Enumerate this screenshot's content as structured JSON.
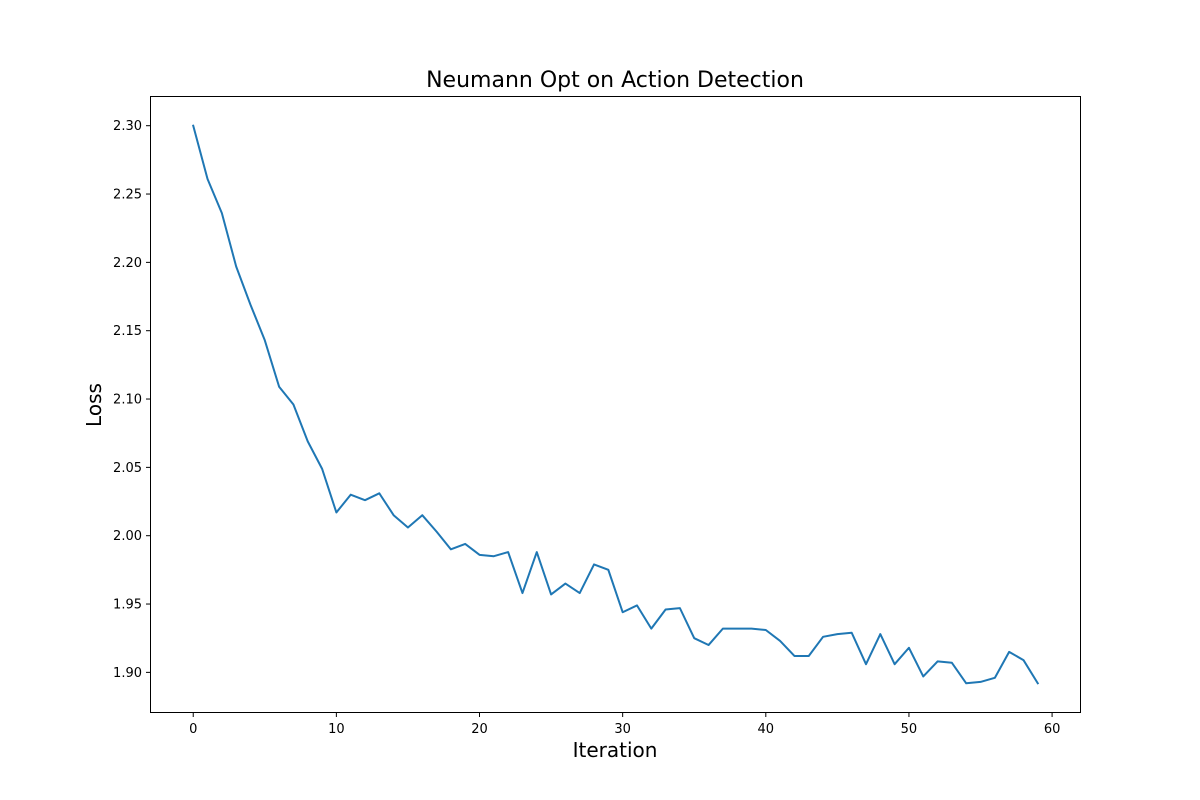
{
  "chart_data": {
    "type": "line",
    "title": "Neumann Opt on Action Detection",
    "xlabel": "Iteration",
    "ylabel": "Loss",
    "xlim": [
      -2.95,
      61.95
    ],
    "ylim": [
      1.871,
      2.321
    ],
    "xticks": [
      0,
      10,
      20,
      30,
      40,
      50,
      60
    ],
    "xtick_labels": [
      "0",
      "10",
      "20",
      "30",
      "40",
      "50",
      "60"
    ],
    "yticks": [
      1.9,
      1.95,
      2.0,
      2.05,
      2.1,
      2.15,
      2.2,
      2.25,
      2.3
    ],
    "ytick_labels": [
      "1.90",
      "1.95",
      "2.00",
      "2.05",
      "2.10",
      "2.15",
      "2.20",
      "2.25",
      "2.30"
    ],
    "grid": false,
    "legend": "none",
    "series": [
      {
        "color": "#1f77b4",
        "x": [
          0,
          1,
          2,
          3,
          4,
          5,
          6,
          7,
          8,
          9,
          10,
          11,
          12,
          13,
          14,
          15,
          16,
          17,
          18,
          19,
          20,
          21,
          22,
          23,
          24,
          25,
          26,
          27,
          28,
          29,
          30,
          31,
          32,
          33,
          34,
          35,
          36,
          37,
          38,
          39,
          40,
          41,
          42,
          43,
          44,
          45,
          46,
          47,
          48,
          49,
          50,
          51,
          52,
          53,
          54,
          55,
          56,
          57,
          58,
          59
        ],
        "y": [
          2.3,
          2.261,
          2.236,
          2.197,
          2.169,
          2.143,
          2.109,
          2.096,
          2.069,
          2.049,
          2.017,
          2.03,
          2.026,
          2.031,
          2.015,
          2.006,
          2.015,
          2.003,
          1.99,
          1.994,
          1.986,
          1.985,
          1.988,
          1.958,
          1.988,
          1.957,
          1.965,
          1.958,
          1.979,
          1.975,
          1.944,
          1.949,
          1.932,
          1.946,
          1.947,
          1.925,
          1.92,
          1.932,
          1.932,
          1.932,
          1.931,
          1.923,
          1.912,
          1.912,
          1.926,
          1.928,
          1.929,
          1.906,
          1.928,
          1.906,
          1.918,
          1.897,
          1.908,
          1.907,
          1.892,
          1.893,
          1.896,
          1.915,
          1.909,
          1.892
        ]
      }
    ]
  }
}
